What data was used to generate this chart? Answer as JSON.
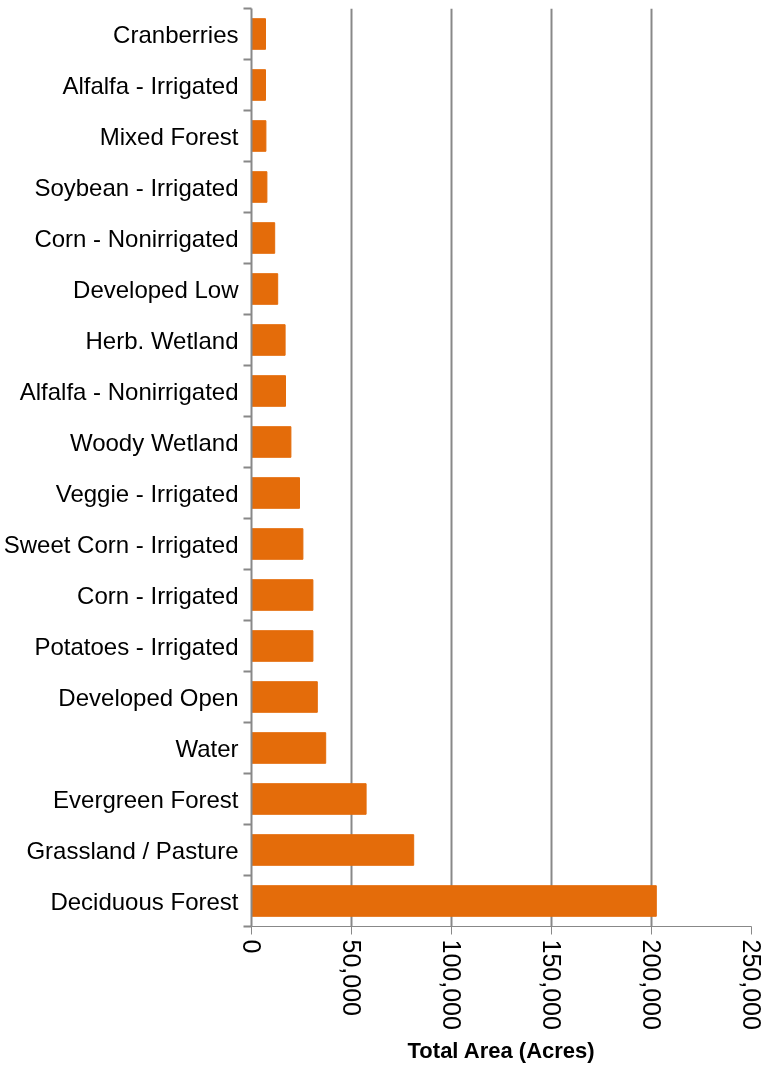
{
  "chart_data": {
    "type": "bar",
    "orientation": "horizontal",
    "xlabel": "Total Area (Acres)",
    "categories": [
      "Cranberries",
      "Alfalfa - Irrigated",
      "Mixed Forest",
      "Soybean - Irrigated",
      "Corn - Nonirrigated",
      "Developed Low",
      "Herb. Wetland",
      "Alfalfa - Nonirrigated",
      "Woody Wetland",
      "Veggie - Irrigated",
      "Sweet Corn - Irrigated",
      "Corn - Irrigated",
      "Potatoes - Irrigated",
      "Developed Open",
      "Water",
      "Evergreen Forest",
      "Grassland / Pasture",
      "Deciduous Forest"
    ],
    "values": [
      7000,
      7000,
      7200,
      7700,
      11600,
      13100,
      16800,
      17000,
      19700,
      24000,
      25700,
      30700,
      30700,
      32900,
      37100,
      57300,
      81100,
      202400
    ],
    "color": "#e46c0a",
    "xlim": [
      0,
      250000
    ],
    "xticks": [
      {
        "value": 0,
        "label": "0"
      },
      {
        "value": 50000,
        "label": "50,000"
      },
      {
        "value": 100000,
        "label": "100,000"
      },
      {
        "value": 150000,
        "label": "150,000"
      },
      {
        "value": 200000,
        "label": "200,000"
      },
      {
        "value": 250000,
        "label": "250,000"
      }
    ],
    "grid": "x"
  }
}
